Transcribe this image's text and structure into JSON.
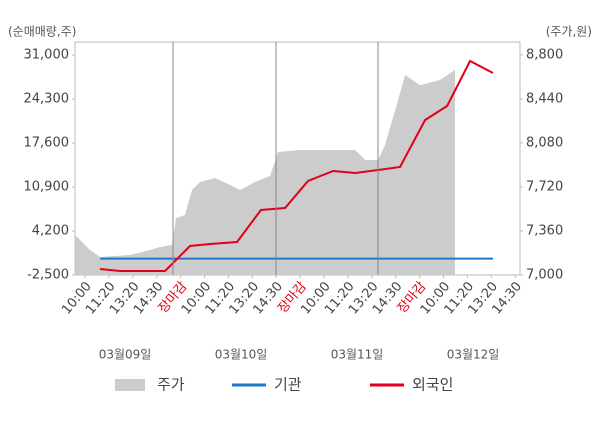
{
  "chart_data": {
    "type": "line",
    "y_label": "(순매매량,주)",
    "y2_label": "(주가,원)",
    "xlim": [
      -0.42,
      18.2
    ],
    "xticks": [
      {
        "value": 0,
        "label": "10:00"
      },
      {
        "value": 1,
        "label": "11:20"
      },
      {
        "value": 2,
        "label": "13:20"
      },
      {
        "value": 3,
        "label": "14:30"
      },
      {
        "value": 4,
        "label": "장마감"
      },
      {
        "value": 5,
        "label": "10:00"
      },
      {
        "value": 6,
        "label": "11:20"
      },
      {
        "value": 7,
        "label": "13:20"
      },
      {
        "value": 8,
        "label": "14:30"
      },
      {
        "value": 9,
        "label": "장마감"
      },
      {
        "value": 10,
        "label": "10:00"
      },
      {
        "value": 11,
        "label": "11:20"
      },
      {
        "value": 12,
        "label": "13:20"
      },
      {
        "value": 13,
        "label": "14:30"
      },
      {
        "value": 14,
        "label": "장마감"
      },
      {
        "value": 15,
        "label": "10:00"
      },
      {
        "value": 16,
        "label": "11:20"
      },
      {
        "value": 17,
        "label": "13:20"
      },
      {
        "value": 18,
        "label": "14:30"
      }
    ],
    "highlight_ticks": [
      4,
      9,
      14
    ],
    "highlight_color": "#e0001b",
    "date_labels": [
      "03월09일",
      "03월10일",
      "03월11일",
      "03월12일"
    ],
    "ylim": [
      -2500,
      31000
    ],
    "yticks": [
      {
        "value": -2500,
        "label": "-2,500"
      },
      {
        "value": 4200,
        "label": "4,200"
      },
      {
        "value": 10900,
        "label": "10,900"
      },
      {
        "value": 17600,
        "label": "17,600"
      },
      {
        "value": 24300,
        "label": "24,300"
      },
      {
        "value": 31000,
        "label": "31,000"
      }
    ],
    "y2lim": [
      7000,
      8800
    ],
    "y2ticks": [
      {
        "value": 7000,
        "label": "7,000"
      },
      {
        "value": 7360,
        "label": "7,360"
      },
      {
        "value": 7720,
        "label": "7,720"
      },
      {
        "value": 8080,
        "label": "8,080"
      },
      {
        "value": 8440,
        "label": "8,440"
      },
      {
        "value": 8800,
        "label": "8,800"
      }
    ],
    "series": [
      {
        "name": "주가",
        "kind": "area",
        "axis": "y2",
        "color": "#cccccc",
        "x": [
          -0.42,
          0.21,
          0.63,
          1.88,
          2.72,
          3.14,
          3.64,
          3.81,
          4.18,
          4.48,
          4.81,
          5.44,
          6.07,
          6.49,
          7.11,
          7.74,
          8.08,
          9.0,
          10.25,
          11.3,
          11.72,
          12.26,
          12.55,
          13.1,
          13.39,
          14.02,
          14.85,
          15.48
        ],
        "values": [
          7327,
          7205,
          7147,
          7164,
          7205,
          7229,
          7245,
          7466,
          7491,
          7695,
          7761,
          7794,
          7736,
          7695,
          7761,
          7810,
          8006,
          8023,
          8023,
          8023,
          7941,
          7941,
          8063,
          8432,
          8636,
          8554,
          8595,
          8677
        ]
      },
      {
        "name": "기관",
        "kind": "line",
        "color": "#1f78c8",
        "x": [
          0.63,
          17.07
        ],
        "values": [
          0,
          0
        ]
      },
      {
        "name": "외국인",
        "kind": "line",
        "color": "#e0001b",
        "x": [
          0.63,
          1.46,
          3.35,
          4.39,
          5.23,
          6.36,
          7.36,
          8.37,
          9.33,
          10.38,
          11.3,
          12.26,
          13.18,
          14.23,
          15.15,
          16.11,
          17.07
        ],
        "values": [
          -1586,
          -1891,
          -1891,
          1916,
          2220,
          2525,
          7398,
          7702,
          11814,
          13336,
          13032,
          13489,
          13945,
          21102,
          23234,
          30086,
          28259
        ]
      }
    ]
  }
}
